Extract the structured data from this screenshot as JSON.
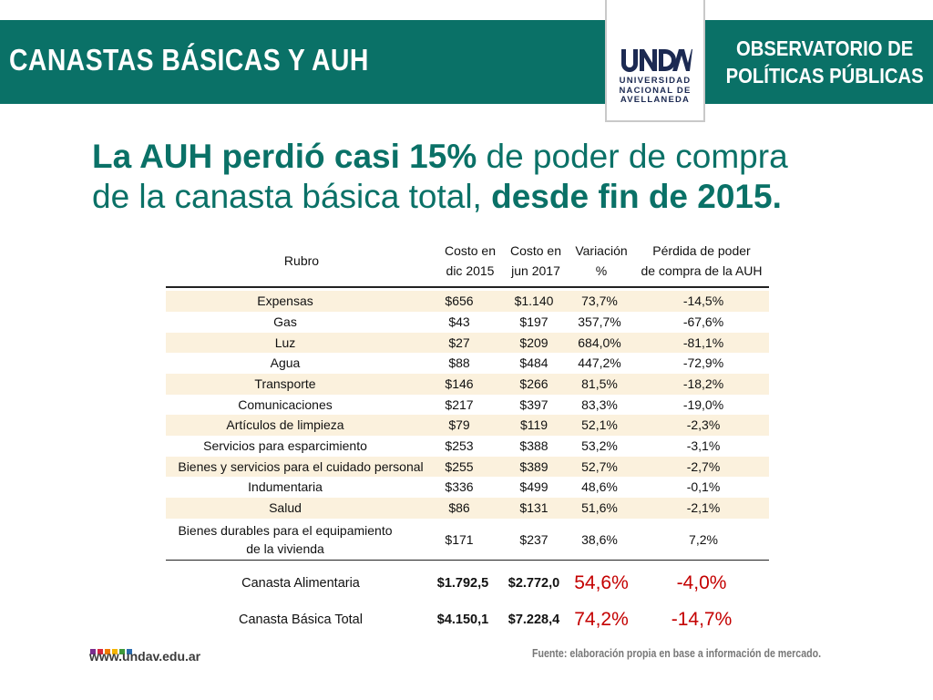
{
  "header": {
    "title": "CANASTAS BÁSICAS Y AUH",
    "org_line1": "OBSERVATORIO DE",
    "org_line2": "POLÍTICAS PÚBLICAS",
    "logo_line1": "UNIVERSIDAD",
    "logo_line2": "NACIONAL DE",
    "logo_line3": "AVELLANEDA"
  },
  "headline": {
    "part1_bold": "La AUH perdió casi 15%",
    "part2": " de poder de compra",
    "part3": "de la canasta básica total, ",
    "part4_bold": "desde fin de 2015",
    "part5": "."
  },
  "table": {
    "headers": {
      "rubro": "Rubro",
      "dic_1": "Costo en",
      "dic_2": "dic 2015",
      "jun_1": "Costo en",
      "jun_2": "jun 2017",
      "var_1": "Variación",
      "var_2": "%",
      "per_1": "Pérdida de poder",
      "per_2": "de compra de la AUH"
    },
    "rows": [
      {
        "rubro": "Expensas",
        "dic": "$656",
        "jun": "$1.140",
        "var": "73,7%",
        "per": "-14,5%"
      },
      {
        "rubro": "Gas",
        "dic": "$43",
        "jun": "$197",
        "var": "357,7%",
        "per": "-67,6%"
      },
      {
        "rubro": "Luz",
        "dic": "$27",
        "jun": "$209",
        "var": "684,0%",
        "per": "-81,1%"
      },
      {
        "rubro": "Agua",
        "dic": "$88",
        "jun": "$484",
        "var": "447,2%",
        "per": "-72,9%"
      },
      {
        "rubro": "Transporte",
        "dic": "$146",
        "jun": "$266",
        "var": "81,5%",
        "per": "-18,2%"
      },
      {
        "rubro": "Comunicaciones",
        "dic": "$217",
        "jun": "$397",
        "var": "83,3%",
        "per": "-19,0%"
      },
      {
        "rubro": "Artículos de limpieza",
        "dic": "$79",
        "jun": "$119",
        "var": "52,1%",
        "per": "-2,3%"
      },
      {
        "rubro": "Servicios para esparcimiento",
        "dic": "$253",
        "jun": "$388",
        "var": "53,2%",
        "per": "-3,1%"
      },
      {
        "rubro": "Bienes y servicios para el cuidado personal",
        "dic": "$255",
        "jun": "$389",
        "var": "52,7%",
        "per": "-2,7%"
      },
      {
        "rubro": "Indumentaria",
        "dic": "$336",
        "jun": "$499",
        "var": "48,6%",
        "per": "-0,1%"
      },
      {
        "rubro": "Salud",
        "dic": "$86",
        "jun": "$131",
        "var": "51,6%",
        "per": "-2,1%"
      },
      {
        "rubro_1": "Bienes durables para el equipamiento",
        "rubro_2": "de la vivienda",
        "dic": "$171",
        "jun": "$237",
        "var": "38,6%",
        "per": "7,2%"
      }
    ],
    "summary": [
      {
        "rubro": "Canasta Alimentaria",
        "dic": "$1.792,5",
        "jun": "$2.772,0",
        "var": "54,6%",
        "per": "-4,0%"
      },
      {
        "rubro": "Canasta Básica Total",
        "dic": "$4.150,1",
        "jun": "$7.228,4",
        "var": "74,2%",
        "per": "-14,7%"
      }
    ]
  },
  "footer": {
    "website": "www.undav.edu.ar",
    "source": "Fuente: elaboración propia en base a información de mercado."
  },
  "colors": {
    "brand_teal": "#0a7167",
    "highlight_red": "#c40000",
    "row_shade": "#fbf1dd",
    "dots": [
      "#7b2d8e",
      "#d7263d",
      "#f07c00",
      "#f5b400",
      "#3f9a3a",
      "#2b6cb0"
    ]
  }
}
